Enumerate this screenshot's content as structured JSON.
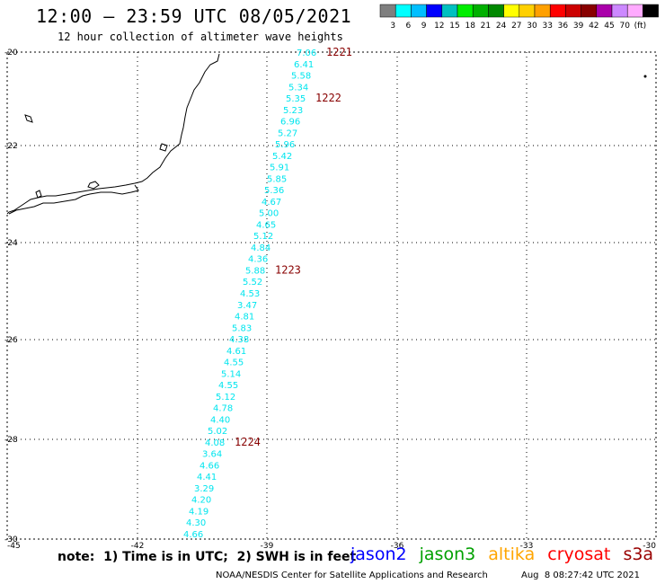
{
  "title": "12:00 – 23:59 UTC 08/05/2021",
  "subtitle": "12 hour collection of altimeter wave heights",
  "legend": {
    "colors": [
      "#7f7f7f",
      "#00ffff",
      "#00bfff",
      "#0000ff",
      "#00c0c0",
      "#00ee00",
      "#00b000",
      "#008800",
      "#ffff00",
      "#ffd000",
      "#ffa000",
      "#ff0000",
      "#cc0000",
      "#880000",
      "#aa00aa",
      "#cc88ff",
      "#ffaaff",
      "#000000"
    ],
    "labels": [
      "3",
      "6",
      "9",
      "12",
      "15",
      "18",
      "21",
      "24",
      "27",
      "30",
      "33",
      "36",
      "39",
      "42",
      "45",
      "70",
      "(ft)"
    ]
  },
  "axes": {
    "lon_labels": [
      "-45",
      "-42",
      "-39",
      "-36",
      "-33",
      "-30"
    ],
    "lat_labels": [
      "-20",
      "-22",
      "-24",
      "-26",
      "-28",
      "-30"
    ]
  },
  "track": {
    "color": "#00e5ee",
    "values": [
      "7.06",
      "6.41",
      "5.58",
      "5.34",
      "5.35",
      "5.23",
      "6.96",
      "5.27",
      "5.96",
      "5.42",
      "5.91",
      "5.85",
      "5.36",
      "4.67",
      "5.00",
      "4.65",
      "5.12",
      "4.84",
      "4.36",
      "5.88",
      "5.52",
      "4.53",
      "3.47",
      "4.81",
      "5.83",
      "4.38",
      "4.61",
      "4.55",
      "5.14",
      "4.55",
      "5.12",
      "4.78",
      "4.40",
      "5.02",
      "4.08",
      "3.64",
      "4.66",
      "4.41",
      "3.29",
      "4.20",
      "4.19",
      "4.30",
      "4.66"
    ]
  },
  "time_labels": {
    "color": "#880000",
    "items": [
      {
        "text": "1221"
      },
      {
        "text": "1222"
      },
      {
        "text": "1223"
      },
      {
        "text": "1224"
      }
    ]
  },
  "footer": {
    "note": "note:  1) Time is in UTC;  2) SWH is in feet",
    "satellites": [
      {
        "name": "jason2",
        "color": "#0000ff"
      },
      {
        "name": "jason3",
        "color": "#00a000"
      },
      {
        "name": "altika",
        "color": "#ffa500"
      },
      {
        "name": "cryosat",
        "color": "#ff0000"
      },
      {
        "name": "s3a",
        "color": "#990000"
      }
    ],
    "credit": "NOAA/NESDIS Center for Satellite Applications and Research",
    "timestamp": "Aug  8 08:27:42 UTC 2021"
  }
}
